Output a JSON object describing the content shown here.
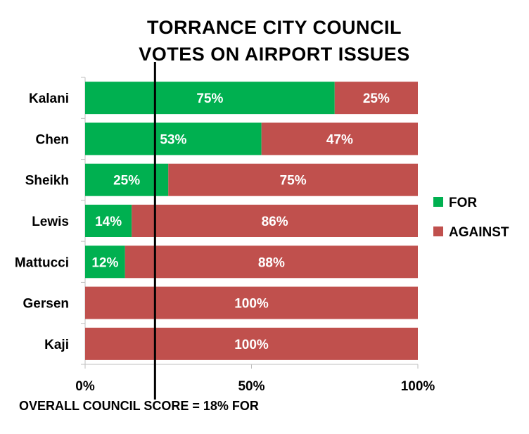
{
  "chart_data": {
    "type": "bar",
    "orientation": "horizontal",
    "stacked": true,
    "percent": true,
    "title_lines": [
      "TORRANCE CITY COUNCIL",
      "VOTES ON AIRPORT ISSUES"
    ],
    "categories": [
      "Kalani",
      "Chen",
      "Sheikh",
      "Lewis",
      "Mattucci",
      "Gersen",
      "Kaji"
    ],
    "series": [
      {
        "name": "FOR",
        "color": "#00b050",
        "values": [
          75,
          53,
          25,
          14,
          12,
          0,
          0
        ],
        "labels": [
          "75%",
          "53%",
          "25%",
          "14%",
          "12%",
          "",
          ""
        ]
      },
      {
        "name": "AGAINST",
        "color": "#c0504d",
        "values": [
          25,
          47,
          75,
          86,
          88,
          100,
          100
        ],
        "labels": [
          "25%",
          "47%",
          "75%",
          "86%",
          "88%",
          "100%",
          "100%"
        ]
      }
    ],
    "xlim": [
      0,
      100
    ],
    "xticks": [
      {
        "value": 0,
        "label": "0%"
      },
      {
        "value": 50,
        "label": "50%"
      },
      {
        "value": 100,
        "label": "100%"
      }
    ],
    "reference_line": {
      "value": 21
    },
    "footnote": "OVERALL COUNCIL SCORE = 18% FOR",
    "legend_position": "right",
    "grid": false
  }
}
